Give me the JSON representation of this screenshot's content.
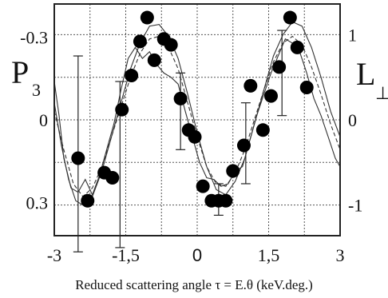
{
  "chart_data": {
    "type": "line",
    "xlabel": "Reduced scattering angle τ = E.θ (keV.deg.)",
    "xlim": [
      -3,
      3
    ],
    "x_ticks": [
      "-3",
      "-1,5",
      "0",
      "1,5",
      "3"
    ],
    "y_left": {
      "label": "P",
      "subscript": "3",
      "lim": [
        0.42,
        -0.42
      ],
      "ticks": [
        "-0.3",
        "0",
        "0.3"
      ],
      "tick_values": [
        -0.3,
        0,
        0.3
      ]
    },
    "y_right": {
      "label": "L",
      "subscript": "⊥",
      "lim": [
        -1.36,
        1.36
      ],
      "ticks": [
        "1",
        "0",
        "-1"
      ],
      "tick_values": [
        1,
        0,
        -1
      ]
    },
    "grid": true,
    "series": [
      {
        "style": "markers",
        "axis": "right",
        "points": [
          [
            -2.5,
            -0.45
          ],
          [
            -2.3,
            -0.95
          ],
          [
            -1.95,
            -0.62
          ],
          [
            -1.78,
            -0.68
          ],
          [
            -1.58,
            0.12
          ],
          [
            -1.38,
            0.52
          ],
          [
            -1.2,
            0.92
          ],
          [
            -1.05,
            1.2
          ],
          [
            -0.9,
            0.7
          ],
          [
            -0.7,
            0.95
          ],
          [
            -0.55,
            0.88
          ],
          [
            -0.35,
            0.25
          ],
          [
            -0.18,
            -0.12
          ],
          [
            -0.05,
            -0.2
          ],
          [
            0.12,
            -0.78
          ],
          [
            0.3,
            -0.95
          ],
          [
            0.45,
            -0.95
          ],
          [
            0.6,
            -0.95
          ],
          [
            0.75,
            -0.6
          ],
          [
            0.98,
            -0.3
          ],
          [
            1.12,
            0.4
          ],
          [
            1.38,
            -0.12
          ],
          [
            1.55,
            0.28
          ],
          [
            1.72,
            0.62
          ],
          [
            1.95,
            1.2
          ],
          [
            2.1,
            0.85
          ],
          [
            2.3,
            0.38
          ]
        ]
      },
      {
        "style": "solid-thin",
        "axis": "right",
        "points": [
          [
            -3.0,
            0.2
          ],
          [
            -2.85,
            -0.3
          ],
          [
            -2.7,
            -0.7
          ],
          [
            -2.55,
            -0.95
          ],
          [
            -2.4,
            -1.0
          ],
          [
            -2.2,
            -0.9
          ],
          [
            -2.0,
            -0.6
          ],
          [
            -1.8,
            -0.2
          ],
          [
            -1.6,
            0.2
          ],
          [
            -1.4,
            0.6
          ],
          [
            -1.2,
            0.9
          ],
          [
            -1.0,
            1.1
          ],
          [
            -0.8,
            1.12
          ],
          [
            -0.6,
            0.98
          ],
          [
            -0.4,
            0.72
          ],
          [
            -0.2,
            0.3
          ],
          [
            0.0,
            -0.15
          ],
          [
            0.2,
            -0.55
          ],
          [
            0.4,
            -0.82
          ],
          [
            0.6,
            -0.88
          ],
          [
            0.8,
            -0.72
          ],
          [
            1.0,
            -0.45
          ],
          [
            1.2,
            -0.05
          ],
          [
            1.4,
            0.35
          ],
          [
            1.6,
            0.75
          ],
          [
            1.8,
            1.0
          ],
          [
            2.0,
            1.15
          ],
          [
            2.2,
            1.1
          ],
          [
            2.4,
            0.85
          ],
          [
            2.6,
            0.5
          ],
          [
            2.8,
            0.1
          ],
          [
            3.0,
            -0.2
          ]
        ]
      },
      {
        "style": "dashed",
        "axis": "right",
        "points": [
          [
            -3.0,
            0.1
          ],
          [
            -2.8,
            -0.35
          ],
          [
            -2.6,
            -0.75
          ],
          [
            -2.4,
            -0.9
          ],
          [
            -2.2,
            -0.8
          ],
          [
            -2.0,
            -0.55
          ],
          [
            -1.8,
            -0.2
          ],
          [
            -1.6,
            0.15
          ],
          [
            -1.4,
            0.5
          ],
          [
            -1.2,
            0.78
          ],
          [
            -1.0,
            0.95
          ],
          [
            -0.8,
            0.98
          ],
          [
            -0.6,
            0.85
          ],
          [
            -0.4,
            0.6
          ],
          [
            -0.2,
            0.2
          ],
          [
            0.0,
            -0.2
          ],
          [
            0.2,
            -0.55
          ],
          [
            0.4,
            -0.75
          ],
          [
            0.6,
            -0.78
          ],
          [
            0.8,
            -0.62
          ],
          [
            1.0,
            -0.35
          ],
          [
            1.2,
            0.0
          ],
          [
            1.4,
            0.35
          ],
          [
            1.6,
            0.68
          ],
          [
            1.8,
            0.9
          ],
          [
            2.0,
            0.98
          ],
          [
            2.2,
            0.88
          ],
          [
            2.4,
            0.62
          ],
          [
            2.6,
            0.3
          ],
          [
            2.8,
            -0.05
          ],
          [
            3.0,
            -0.35
          ]
        ]
      },
      {
        "style": "solid-wavy",
        "axis": "right",
        "points": [
          [
            -3.0,
            0.45
          ],
          [
            -2.9,
            0.05
          ],
          [
            -2.8,
            -0.45
          ],
          [
            -2.65,
            -0.8
          ],
          [
            -2.5,
            -0.85
          ],
          [
            -2.35,
            -0.7
          ],
          [
            -2.2,
            -0.88
          ],
          [
            -2.05,
            -0.65
          ],
          [
            -1.9,
            -0.35
          ],
          [
            -1.75,
            -0.05
          ],
          [
            -1.6,
            0.35
          ],
          [
            -1.45,
            0.72
          ],
          [
            -1.3,
            0.85
          ],
          [
            -1.15,
            0.72
          ],
          [
            -1.0,
            0.8
          ],
          [
            -0.85,
            0.65
          ],
          [
            -0.7,
            0.55
          ],
          [
            -0.55,
            0.5
          ],
          [
            -0.4,
            0.42
          ],
          [
            -0.25,
            0.1
          ],
          [
            -0.1,
            -0.2
          ],
          [
            0.05,
            -0.5
          ],
          [
            0.2,
            -0.68
          ],
          [
            0.35,
            -0.7
          ],
          [
            0.5,
            -0.78
          ],
          [
            0.65,
            -0.75
          ],
          [
            0.8,
            -0.6
          ],
          [
            0.95,
            -0.55
          ],
          [
            1.1,
            -0.25
          ],
          [
            1.25,
            0.05
          ],
          [
            1.4,
            0.3
          ],
          [
            1.55,
            0.55
          ],
          [
            1.7,
            0.75
          ],
          [
            1.85,
            0.95
          ],
          [
            2.0,
            0.9
          ],
          [
            2.15,
            0.8
          ],
          [
            2.3,
            0.55
          ],
          [
            2.45,
            0.25
          ],
          [
            2.6,
            0.05
          ],
          [
            2.75,
            -0.2
          ],
          [
            2.9,
            -0.45
          ],
          [
            3.0,
            -0.55
          ]
        ]
      }
    ],
    "error_bars": [
      {
        "x": -2.5,
        "y": -0.45,
        "low": -1.55,
        "high": 0.75
      },
      {
        "x": -1.62,
        "y": 0.12,
        "low": -1.5,
        "high": 0.45
      },
      {
        "x": -0.35,
        "y": 0.25,
        "low": -0.35,
        "high": 0.55
      },
      {
        "x": 0.45,
        "y": -0.95,
        "low": -1.12,
        "high": -0.75
      },
      {
        "x": 1.02,
        "y": -0.3,
        "low": -0.75,
        "high": 0.2
      },
      {
        "x": 1.78,
        "y": 0.62,
        "low": 0.05,
        "high": 1.05
      }
    ]
  }
}
